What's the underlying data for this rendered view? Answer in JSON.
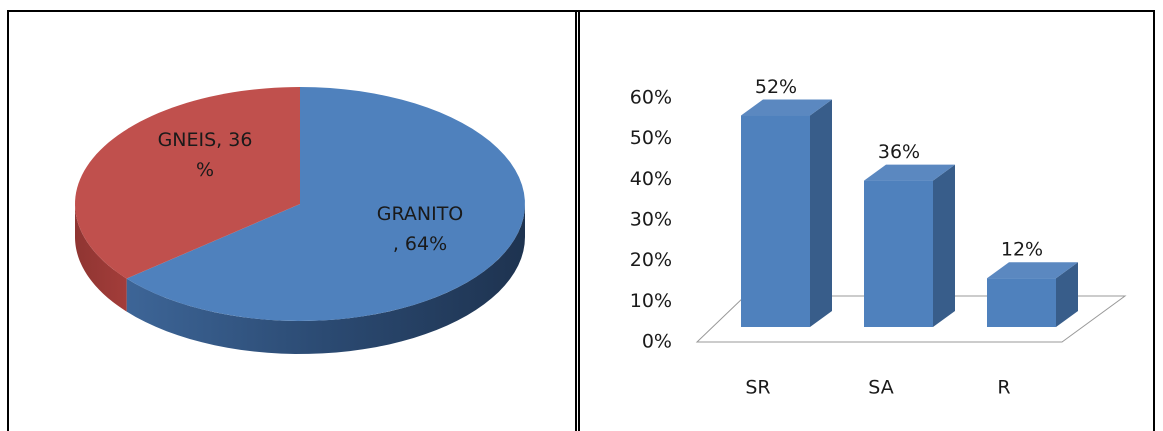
{
  "chart_data": [
    {
      "type": "pie3d",
      "values": [
        64,
        36
      ],
      "value_labels": [
        "GRANITO, 64%",
        "GNEIS, 36 %"
      ],
      "colors": [
        "#4f81bd",
        "#c0504d"
      ]
    },
    {
      "type": "bar3d",
      "categories": [
        "SR",
        "SA",
        "R"
      ],
      "values": [
        52,
        36,
        12
      ],
      "value_labels": [
        "52%",
        "36%",
        "12%"
      ],
      "color": "#4f81bd",
      "ylim": [
        0,
        60
      ],
      "yticks": [
        {
          "value": 0,
          "label": "0%"
        },
        {
          "value": 10,
          "label": "10%"
        },
        {
          "value": 20,
          "label": "20%"
        },
        {
          "value": 30,
          "label": "30%"
        },
        {
          "value": 40,
          "label": "40%"
        },
        {
          "value": 50,
          "label": "50%"
        },
        {
          "value": 60,
          "label": "60%"
        }
      ]
    }
  ]
}
